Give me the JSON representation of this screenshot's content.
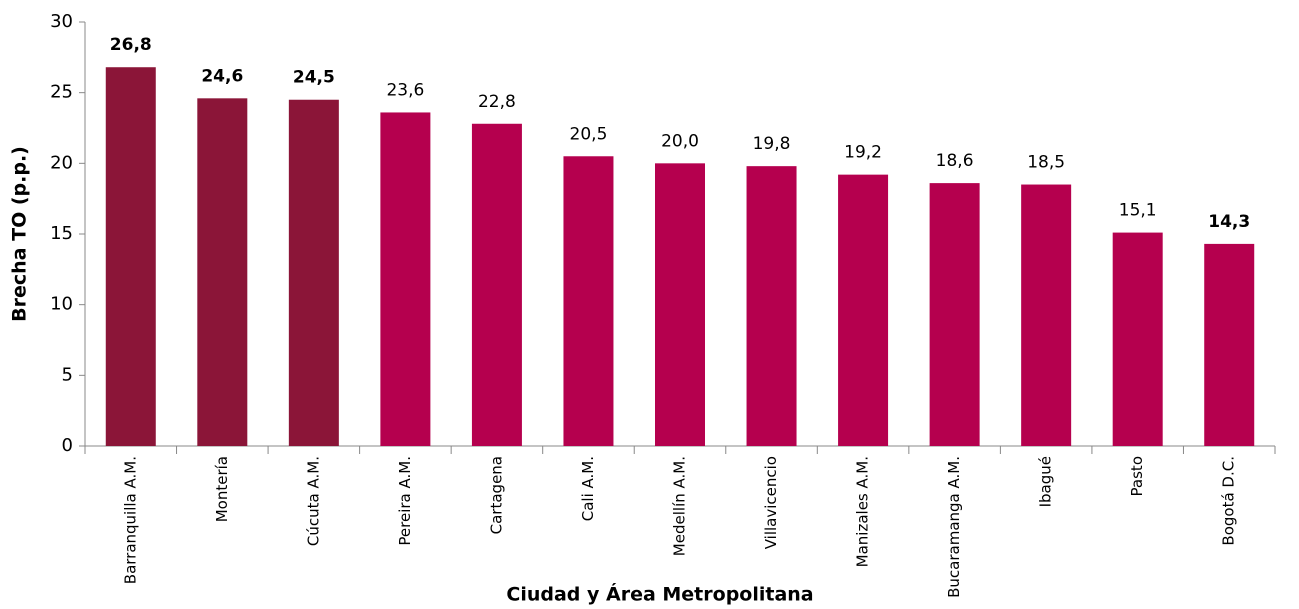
{
  "chart_data": {
    "type": "bar",
    "x_label": "Ciudad y Área Metropolitana",
    "y_label": "Brecha TO (p.p.)",
    "categories": [
      "Barranquilla A.M.",
      "Montería",
      "Cúcuta A.M.",
      "Pereira A.M.",
      "Cartagena",
      "Cali A.M.",
      "Medellín A.M.",
      "Villavicencio",
      "Manizales A.M.",
      "Bucaramanga A.M.",
      "Ibagué",
      "Pasto",
      "Bogotá D.C."
    ],
    "values": [
      26.8,
      24.6,
      24.5,
      23.6,
      22.8,
      20.5,
      20.0,
      19.8,
      19.2,
      18.6,
      18.5,
      15.1,
      14.3
    ],
    "value_labels": [
      "26,8",
      "24,6",
      "24,5",
      "23,6",
      "22,8",
      "20,5",
      "20,0",
      "19,8",
      "19,2",
      "18,6",
      "18,5",
      "15,1",
      "14,3"
    ],
    "value_label_bold": [
      true,
      true,
      true,
      false,
      false,
      false,
      false,
      false,
      false,
      false,
      false,
      false,
      true
    ],
    "colors": [
      "#8b1538",
      "#8b1538",
      "#8b1538",
      "#b5004e",
      "#b5004e",
      "#b5004e",
      "#b5004e",
      "#b5004e",
      "#b5004e",
      "#b5004e",
      "#b5004e",
      "#b5004e",
      "#b5004e"
    ],
    "ylim": [
      0,
      30
    ],
    "yticks": [
      0,
      5,
      10,
      15,
      20,
      25,
      30
    ],
    "grid": false
  }
}
